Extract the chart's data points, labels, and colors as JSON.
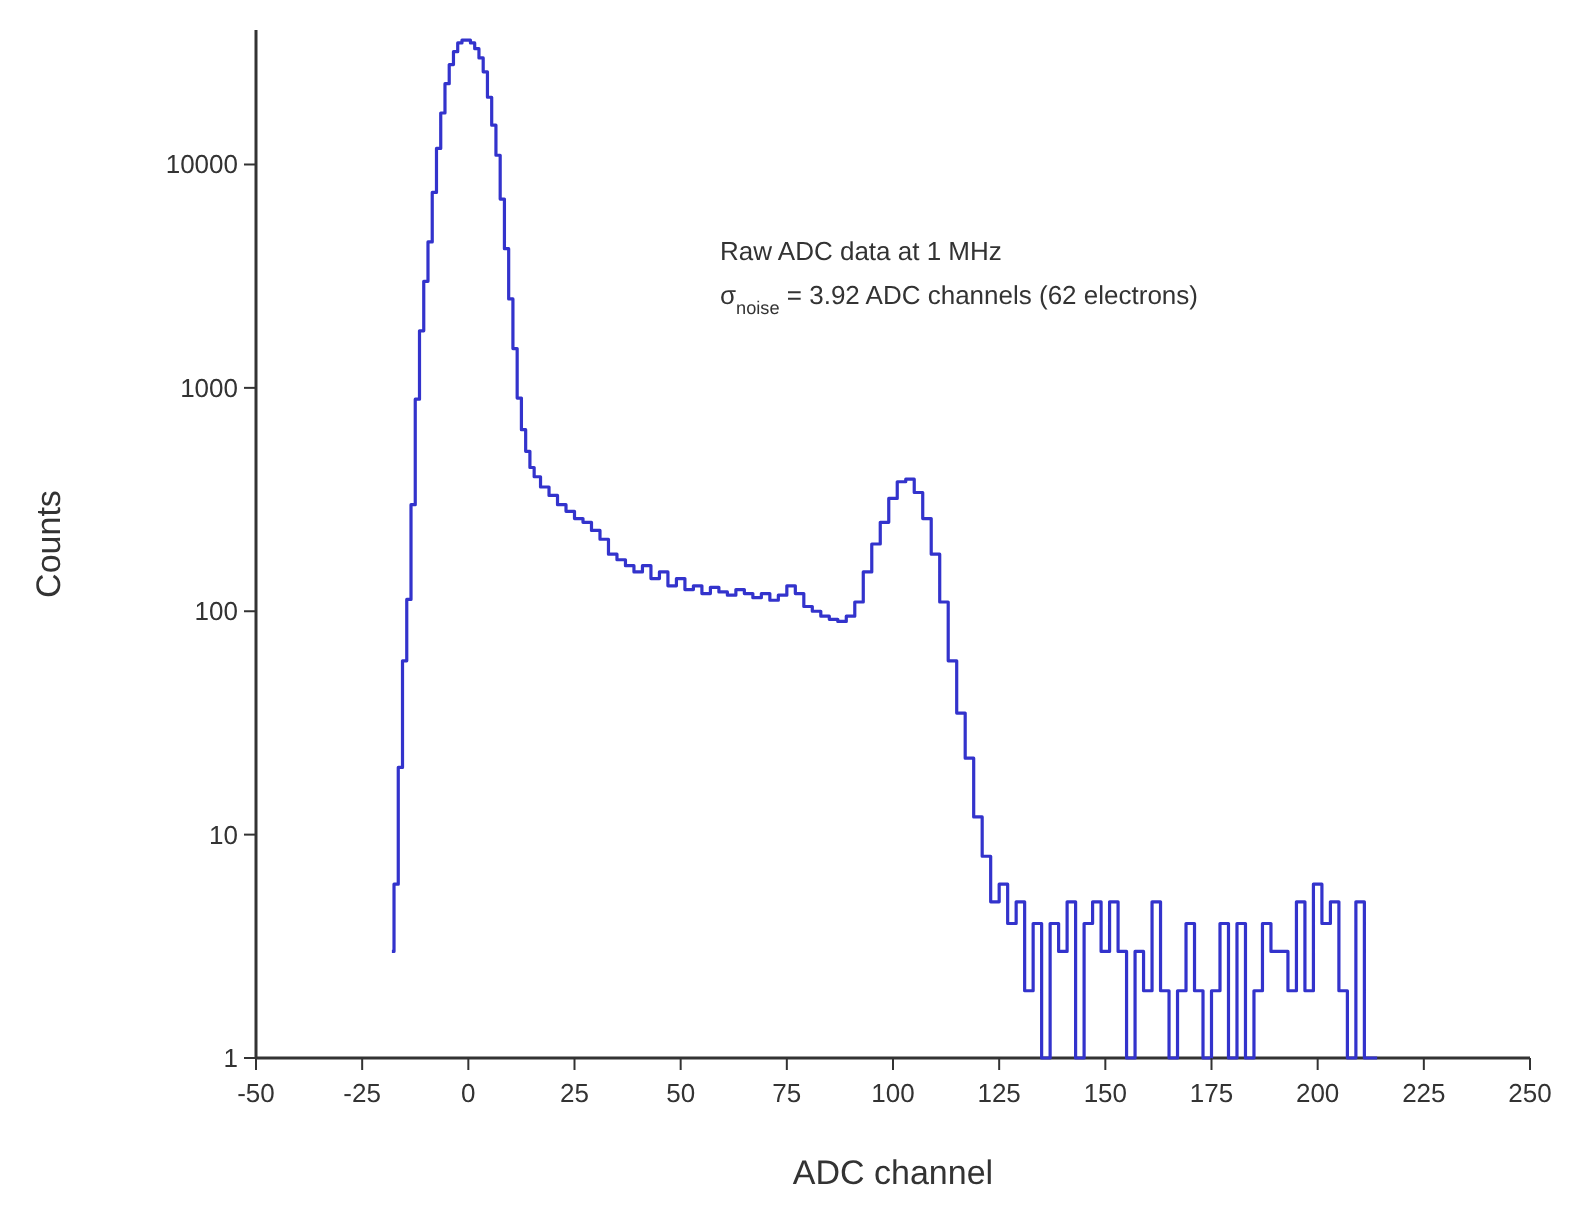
{
  "chart_data": {
    "type": "step",
    "xlabel": "ADC channel",
    "ylabel": "Counts",
    "annotations": [
      "Raw ADC data at 1 MHz",
      "σ$_{noise}$ = 3.92 ADC channels (62 electrons)"
    ],
    "log": "y",
    "xlim": [
      -50,
      250
    ],
    "ylim": [
      1,
      40000
    ],
    "xticks": [
      -50,
      -25,
      0,
      25,
      50,
      75,
      100,
      125,
      150,
      175,
      200,
      225,
      250
    ],
    "yticks": [
      1,
      10,
      100,
      1000,
      10000
    ],
    "series": [
      {
        "color": "#3333cc",
        "x": [
          -18,
          -17,
          -16,
          -15,
          -14,
          -13,
          -12,
          -11,
          -10,
          -9,
          -8,
          -7,
          -6,
          -5,
          -4,
          -3,
          -2,
          -1,
          0,
          1,
          2,
          3,
          4,
          5,
          6,
          7,
          8,
          9,
          10,
          11,
          12,
          13,
          14,
          15,
          16,
          18,
          20,
          22,
          24,
          26,
          28,
          30,
          32,
          34,
          36,
          38,
          40,
          42,
          44,
          46,
          48,
          50,
          52,
          54,
          56,
          58,
          60,
          62,
          64,
          66,
          68,
          70,
          72,
          74,
          76,
          78,
          80,
          82,
          84,
          86,
          88,
          90,
          92,
          94,
          96,
          98,
          100,
          102,
          104,
          106,
          108,
          110,
          112,
          114,
          116,
          118,
          120,
          122,
          124,
          126,
          128,
          130,
          132,
          134,
          136,
          138,
          140,
          142,
          144,
          146,
          148,
          150,
          152,
          154,
          156,
          158,
          160,
          162,
          164,
          166,
          168,
          170,
          172,
          174,
          176,
          178,
          180,
          182,
          184,
          186,
          188,
          190,
          192,
          194,
          196,
          198,
          200,
          202,
          204,
          206,
          208,
          210,
          212,
          214
        ],
        "values": [
          3,
          6,
          20,
          60,
          113,
          300,
          890,
          1800,
          3000,
          4500,
          7500,
          11800,
          17000,
          23000,
          28000,
          32000,
          35000,
          36000,
          36000,
          35000,
          33000,
          30000,
          26000,
          20000,
          15000,
          11000,
          7000,
          4200,
          2500,
          1500,
          900,
          650,
          520,
          440,
          400,
          360,
          330,
          300,
          280,
          260,
          250,
          230,
          210,
          180,
          170,
          160,
          150,
          160,
          140,
          150,
          130,
          140,
          125,
          130,
          120,
          128,
          122,
          118,
          125,
          120,
          115,
          120,
          112,
          118,
          130,
          120,
          105,
          100,
          95,
          92,
          90,
          95,
          110,
          150,
          200,
          250,
          320,
          380,
          390,
          340,
          260,
          180,
          110,
          60,
          35,
          22,
          12,
          8,
          5,
          6,
          4,
          5,
          2,
          4,
          1,
          4,
          3,
          5,
          1,
          4,
          5,
          3,
          5,
          3,
          1,
          3,
          2,
          5,
          2,
          1,
          2,
          4,
          2,
          1,
          2,
          4,
          1,
          4,
          1,
          2,
          4,
          3,
          3,
          2,
          5,
          2,
          6,
          4,
          5,
          2,
          1,
          5,
          1,
          1
        ]
      }
    ]
  }
}
